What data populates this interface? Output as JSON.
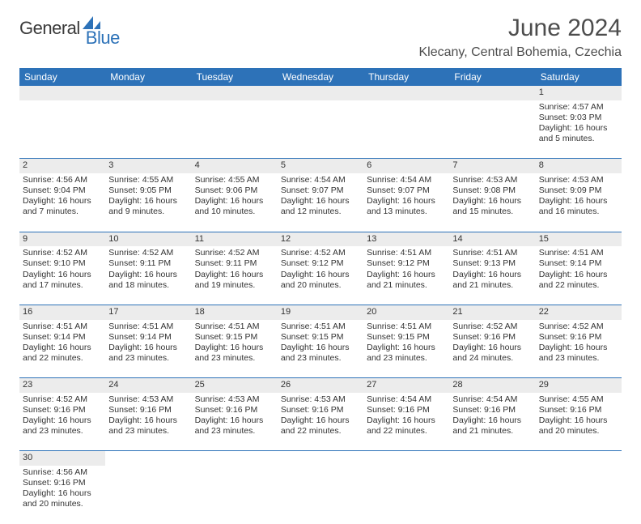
{
  "logo": {
    "general": "General",
    "blue": "Blue"
  },
  "title": "June 2024",
  "location": "Klecany, Central Bohemia, Czechia",
  "colors": {
    "header_bg": "#2d72b8",
    "header_text": "#ffffff",
    "daynum_bg": "#ececec",
    "cell_border": "#2d72b8",
    "text": "#333333",
    "title_text": "#4d4d4d"
  },
  "day_headers": [
    "Sunday",
    "Monday",
    "Tuesday",
    "Wednesday",
    "Thursday",
    "Friday",
    "Saturday"
  ],
  "weeks": [
    [
      null,
      null,
      null,
      null,
      null,
      null,
      {
        "n": "1",
        "sr": "4:57 AM",
        "ss": "9:03 PM",
        "dl": "16 hours and 5 minutes."
      }
    ],
    [
      {
        "n": "2",
        "sr": "4:56 AM",
        "ss": "9:04 PM",
        "dl": "16 hours and 7 minutes."
      },
      {
        "n": "3",
        "sr": "4:55 AM",
        "ss": "9:05 PM",
        "dl": "16 hours and 9 minutes."
      },
      {
        "n": "4",
        "sr": "4:55 AM",
        "ss": "9:06 PM",
        "dl": "16 hours and 10 minutes."
      },
      {
        "n": "5",
        "sr": "4:54 AM",
        "ss": "9:07 PM",
        "dl": "16 hours and 12 minutes."
      },
      {
        "n": "6",
        "sr": "4:54 AM",
        "ss": "9:07 PM",
        "dl": "16 hours and 13 minutes."
      },
      {
        "n": "7",
        "sr": "4:53 AM",
        "ss": "9:08 PM",
        "dl": "16 hours and 15 minutes."
      },
      {
        "n": "8",
        "sr": "4:53 AM",
        "ss": "9:09 PM",
        "dl": "16 hours and 16 minutes."
      }
    ],
    [
      {
        "n": "9",
        "sr": "4:52 AM",
        "ss": "9:10 PM",
        "dl": "16 hours and 17 minutes."
      },
      {
        "n": "10",
        "sr": "4:52 AM",
        "ss": "9:11 PM",
        "dl": "16 hours and 18 minutes."
      },
      {
        "n": "11",
        "sr": "4:52 AM",
        "ss": "9:11 PM",
        "dl": "16 hours and 19 minutes."
      },
      {
        "n": "12",
        "sr": "4:52 AM",
        "ss": "9:12 PM",
        "dl": "16 hours and 20 minutes."
      },
      {
        "n": "13",
        "sr": "4:51 AM",
        "ss": "9:12 PM",
        "dl": "16 hours and 21 minutes."
      },
      {
        "n": "14",
        "sr": "4:51 AM",
        "ss": "9:13 PM",
        "dl": "16 hours and 21 minutes."
      },
      {
        "n": "15",
        "sr": "4:51 AM",
        "ss": "9:14 PM",
        "dl": "16 hours and 22 minutes."
      }
    ],
    [
      {
        "n": "16",
        "sr": "4:51 AM",
        "ss": "9:14 PM",
        "dl": "16 hours and 22 minutes."
      },
      {
        "n": "17",
        "sr": "4:51 AM",
        "ss": "9:14 PM",
        "dl": "16 hours and 23 minutes."
      },
      {
        "n": "18",
        "sr": "4:51 AM",
        "ss": "9:15 PM",
        "dl": "16 hours and 23 minutes."
      },
      {
        "n": "19",
        "sr": "4:51 AM",
        "ss": "9:15 PM",
        "dl": "16 hours and 23 minutes."
      },
      {
        "n": "20",
        "sr": "4:51 AM",
        "ss": "9:15 PM",
        "dl": "16 hours and 23 minutes."
      },
      {
        "n": "21",
        "sr": "4:52 AM",
        "ss": "9:16 PM",
        "dl": "16 hours and 24 minutes."
      },
      {
        "n": "22",
        "sr": "4:52 AM",
        "ss": "9:16 PM",
        "dl": "16 hours and 23 minutes."
      }
    ],
    [
      {
        "n": "23",
        "sr": "4:52 AM",
        "ss": "9:16 PM",
        "dl": "16 hours and 23 minutes."
      },
      {
        "n": "24",
        "sr": "4:53 AM",
        "ss": "9:16 PM",
        "dl": "16 hours and 23 minutes."
      },
      {
        "n": "25",
        "sr": "4:53 AM",
        "ss": "9:16 PM",
        "dl": "16 hours and 23 minutes."
      },
      {
        "n": "26",
        "sr": "4:53 AM",
        "ss": "9:16 PM",
        "dl": "16 hours and 22 minutes."
      },
      {
        "n": "27",
        "sr": "4:54 AM",
        "ss": "9:16 PM",
        "dl": "16 hours and 22 minutes."
      },
      {
        "n": "28",
        "sr": "4:54 AM",
        "ss": "9:16 PM",
        "dl": "16 hours and 21 minutes."
      },
      {
        "n": "29",
        "sr": "4:55 AM",
        "ss": "9:16 PM",
        "dl": "16 hours and 20 minutes."
      }
    ],
    [
      {
        "n": "30",
        "sr": "4:56 AM",
        "ss": "9:16 PM",
        "dl": "16 hours and 20 minutes."
      },
      null,
      null,
      null,
      null,
      null,
      null
    ]
  ],
  "labels": {
    "sunrise": "Sunrise: ",
    "sunset": "Sunset: ",
    "daylight": "Daylight: "
  }
}
